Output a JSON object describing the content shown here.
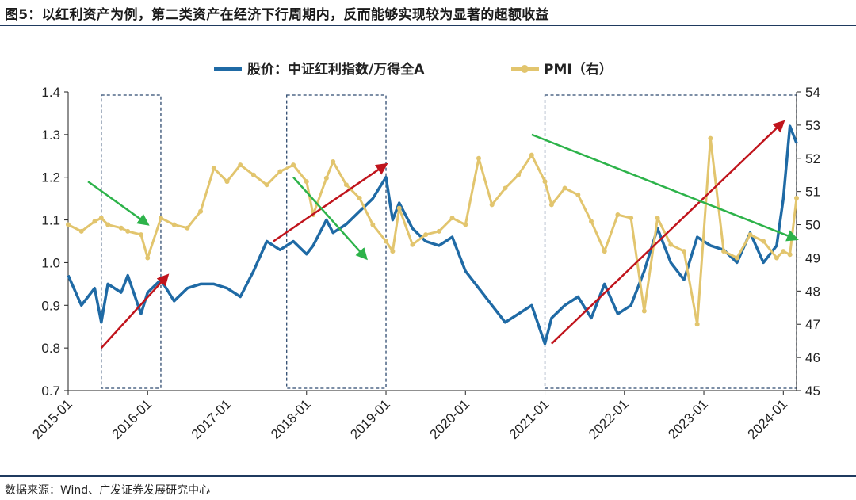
{
  "figure": {
    "title": "图5：以红利资产为例，第二类资产在经济下行周期内，反而能够实现较为显著的超额收益",
    "source": "数据来源：Wind、广发证券发展研究中心"
  },
  "colors": {
    "stock_line": "#1f6aa5",
    "pmi_line": "#e2c56e",
    "up_arrow": "#c0141c",
    "down_arrow": "#2db34a",
    "box": "#2f4b70",
    "rule": "#1f3a5f"
  },
  "chart_data": {
    "type": "line",
    "x_tick_labels": [
      "2015-01",
      "2016-01",
      "2017-01",
      "2018-01",
      "2019-01",
      "2020-01",
      "2021-01",
      "2022-01",
      "2023-01",
      "2024-01"
    ],
    "xlim": [
      "2015-01",
      "2024-03"
    ],
    "y_left": {
      "lim": [
        0.7,
        1.4
      ],
      "ticks": [
        "0.7",
        "0.8",
        "0.9",
        "1.0",
        "1.1",
        "1.2",
        "1.3",
        "1.4"
      ]
    },
    "y_right": {
      "lim": [
        45,
        54
      ],
      "ticks": [
        "45",
        "46",
        "47",
        "48",
        "49",
        "50",
        "51",
        "52",
        "53",
        "54"
      ]
    },
    "series": [
      {
        "name": "股价：中证红利指数/万得全A",
        "axis": "left",
        "x": [
          "2015-01",
          "2015-03",
          "2015-05",
          "2015-06",
          "2015-07",
          "2015-09",
          "2015-10",
          "2015-12",
          "2016-01",
          "2016-03",
          "2016-05",
          "2016-07",
          "2016-09",
          "2016-11",
          "2017-01",
          "2017-03",
          "2017-05",
          "2017-07",
          "2017-09",
          "2017-11",
          "2018-01",
          "2018-02",
          "2018-04",
          "2018-05",
          "2018-07",
          "2018-09",
          "2018-11",
          "2019-01",
          "2019-02",
          "2019-03",
          "2019-05",
          "2019-07",
          "2019-09",
          "2019-11",
          "2020-01",
          "2020-03",
          "2020-05",
          "2020-07",
          "2020-09",
          "2020-11",
          "2021-01",
          "2021-02",
          "2021-04",
          "2021-06",
          "2021-08",
          "2021-10",
          "2021-12",
          "2022-02",
          "2022-04",
          "2022-06",
          "2022-08",
          "2022-10",
          "2022-12",
          "2023-02",
          "2023-04",
          "2023-06",
          "2023-08",
          "2023-10",
          "2023-12",
          "2024-01",
          "2024-02",
          "2024-03"
        ],
        "values": [
          0.97,
          0.9,
          0.94,
          0.86,
          0.95,
          0.93,
          0.97,
          0.88,
          0.93,
          0.96,
          0.91,
          0.94,
          0.95,
          0.95,
          0.94,
          0.92,
          0.98,
          1.05,
          1.03,
          1.05,
          1.02,
          1.04,
          1.1,
          1.07,
          1.09,
          1.12,
          1.15,
          1.2,
          1.1,
          1.14,
          1.08,
          1.05,
          1.04,
          1.06,
          0.98,
          0.94,
          0.9,
          0.86,
          0.88,
          0.9,
          0.81,
          0.87,
          0.9,
          0.92,
          0.87,
          0.95,
          0.88,
          0.9,
          0.98,
          1.08,
          1.0,
          0.96,
          1.06,
          1.04,
          1.03,
          1.0,
          1.07,
          1.0,
          1.04,
          1.15,
          1.32,
          1.28
        ]
      },
      {
        "name": "PMI（右）",
        "axis": "right",
        "x": [
          "2015-01",
          "2015-03",
          "2015-05",
          "2015-06",
          "2015-07",
          "2015-09",
          "2015-10",
          "2015-12",
          "2016-01",
          "2016-03",
          "2016-05",
          "2016-07",
          "2016-09",
          "2016-11",
          "2017-01",
          "2017-03",
          "2017-05",
          "2017-07",
          "2017-09",
          "2017-11",
          "2018-01",
          "2018-02",
          "2018-04",
          "2018-05",
          "2018-07",
          "2018-09",
          "2018-11",
          "2019-01",
          "2019-02",
          "2019-03",
          "2019-05",
          "2019-07",
          "2019-09",
          "2019-11",
          "2020-01",
          "2020-03",
          "2020-05",
          "2020-07",
          "2020-09",
          "2020-11",
          "2021-01",
          "2021-02",
          "2021-04",
          "2021-06",
          "2021-08",
          "2021-10",
          "2021-12",
          "2022-02",
          "2022-04",
          "2022-06",
          "2022-08",
          "2022-10",
          "2022-12",
          "2023-02",
          "2023-04",
          "2023-06",
          "2023-08",
          "2023-10",
          "2023-12",
          "2024-01",
          "2024-02",
          "2024-03"
        ],
        "values": [
          50.0,
          49.8,
          50.1,
          50.2,
          50.0,
          49.9,
          49.8,
          49.7,
          49.0,
          50.2,
          50.0,
          49.9,
          50.4,
          51.7,
          51.3,
          51.8,
          51.5,
          51.2,
          51.6,
          51.8,
          51.3,
          50.3,
          51.4,
          51.9,
          51.2,
          50.8,
          50.0,
          49.5,
          49.2,
          50.5,
          49.4,
          49.7,
          49.8,
          50.2,
          50.0,
          52.0,
          50.6,
          51.1,
          51.5,
          52.1,
          51.3,
          50.6,
          51.1,
          50.9,
          50.1,
          49.2,
          50.3,
          50.2,
          47.4,
          50.2,
          49.4,
          49.2,
          47.0,
          52.6,
          49.2,
          49.0,
          49.7,
          49.5,
          49.0,
          49.2,
          49.1,
          50.8
        ]
      }
    ],
    "legend_position": "top-center",
    "grid": false,
    "highlight_boxes": [
      {
        "from": "2015-06",
        "to": "2016-03"
      },
      {
        "from": "2017-10",
        "to": "2019-01"
      },
      {
        "from": "2021-01",
        "to": "2024-03"
      }
    ],
    "trend_arrows": [
      {
        "color": "up",
        "from": [
          "2015-06",
          0.8
        ],
        "to": [
          "2016-04",
          0.97
        ]
      },
      {
        "color": "down",
        "from": [
          "2015-04",
          1.19
        ],
        "to": [
          "2016-01",
          1.09
        ]
      },
      {
        "color": "up",
        "from": [
          "2017-08",
          1.05
        ],
        "to": [
          "2019-01",
          1.23
        ]
      },
      {
        "color": "down",
        "from": [
          "2017-11",
          1.2
        ],
        "to": [
          "2018-10",
          1.01
        ]
      },
      {
        "color": "up",
        "from": [
          "2021-02",
          0.81
        ],
        "to": [
          "2024-01",
          1.33
        ]
      },
      {
        "color": "down",
        "from": [
          "2020-11",
          1.3
        ],
        "to": [
          "2024-03",
          1.055
        ]
      }
    ]
  }
}
